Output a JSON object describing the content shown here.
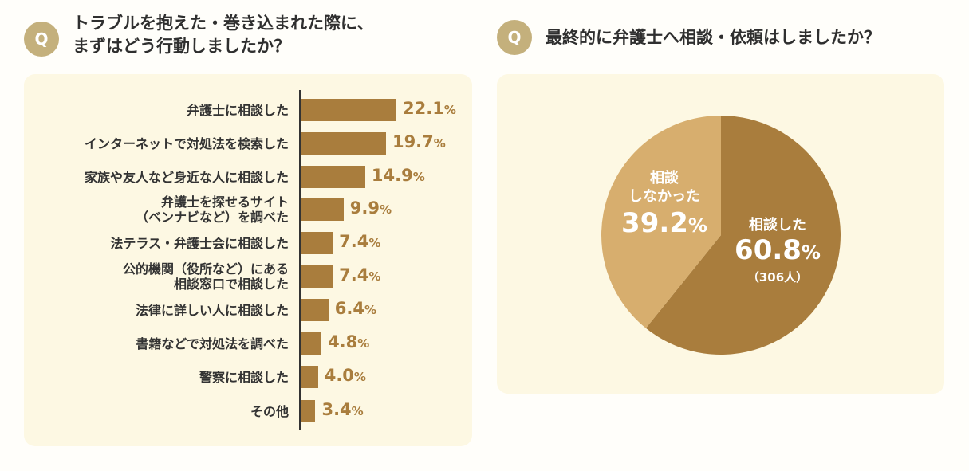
{
  "colors": {
    "bar": "#a97d3d",
    "pie_yes": "#a97d3d",
    "pie_no": "#d7ae6e",
    "badge": "#c4b07c",
    "panel": "#fdf8e3"
  },
  "left": {
    "badge": "Q",
    "title": "トラブルを抱えた・巻き込まれた際に、\nまずはどう行動しましたか？"
  },
  "right": {
    "badge": "Q",
    "title": "最終的に弁護士へ相談・依頼はしましたか？"
  },
  "chart_data": [
    {
      "type": "bar",
      "orientation": "horizontal",
      "title": "トラブルを抱えた・巻き込まれた際に、まずはどう行動しましたか？",
      "categories": [
        "弁護士に相談した",
        "インターネットで対処法を検索した",
        "家族や友人など身近な人に相談した",
        "弁護士を探せるサイト\n（ベンナビなど）を調べた",
        "法テラス・弁護士会に相談した",
        "公的機関（役所など）にある\n相談窓口で相談した",
        "法律に詳しい人に相談した",
        "書籍などで対処法を調べた",
        "警察に相談した",
        "その他"
      ],
      "values": [
        22.1,
        19.7,
        14.9,
        9.9,
        7.4,
        7.4,
        6.4,
        4.8,
        4.0,
        3.4
      ],
      "value_labels": [
        "22.1",
        "19.7",
        "14.9",
        "9.9",
        "7.4",
        "7.4",
        "6.4",
        "4.8",
        "4.0",
        "3.4"
      ],
      "unit": "%",
      "xlim": [
        0,
        25
      ]
    },
    {
      "type": "pie",
      "title": "最終的に弁護士へ相談・依頼はしましたか？",
      "slices": [
        {
          "label": "相談した",
          "value": 60.8,
          "value_label": "60.8",
          "count": "（306人）"
        },
        {
          "label": "相談\nしなかった",
          "value": 39.2,
          "value_label": "39.2"
        }
      ],
      "unit": "%"
    }
  ]
}
